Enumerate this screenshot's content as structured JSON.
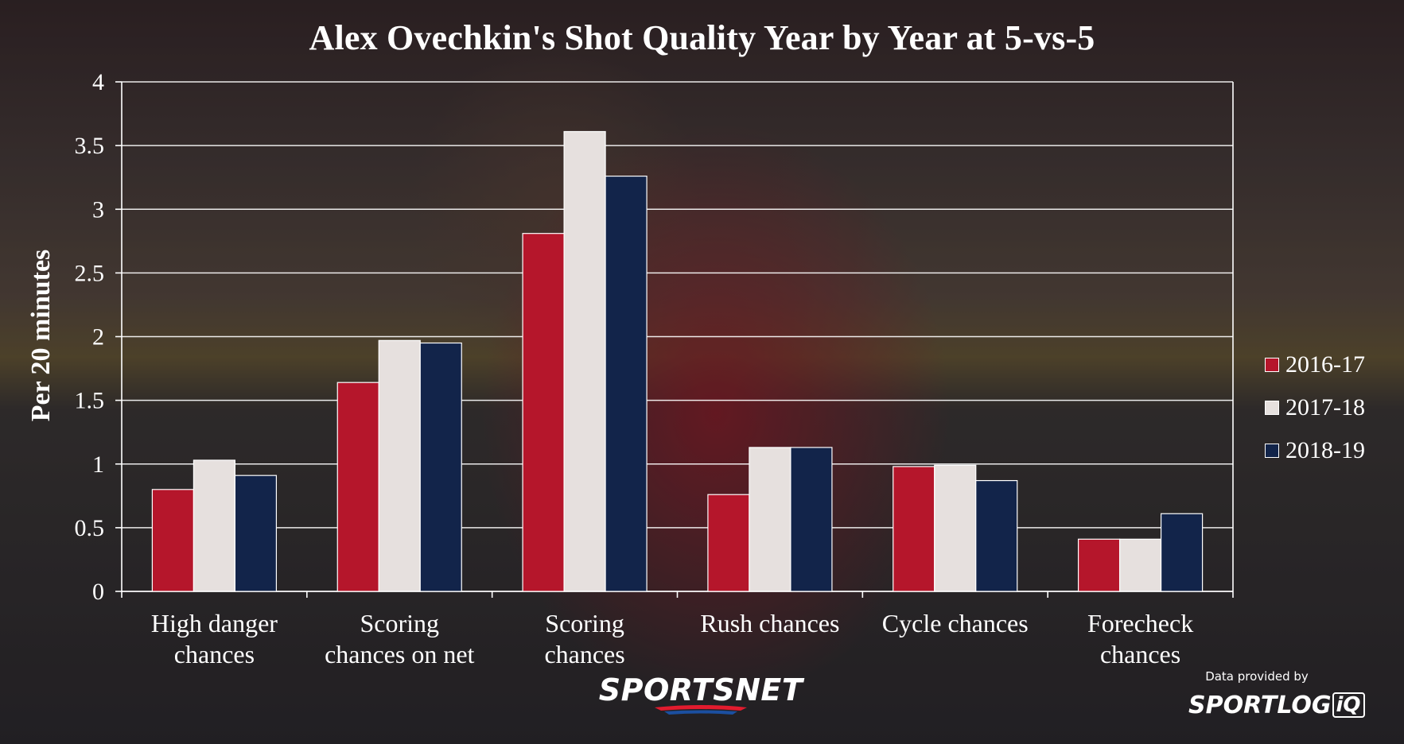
{
  "title": "Alex Ovechkin's Shot Quality Year by Year at 5-vs-5",
  "chart_data": {
    "type": "bar",
    "title": "Alex Ovechkin's Shot Quality Year by Year at 5-vs-5",
    "xlabel": "",
    "ylabel": "Per 20 minutes",
    "ylim": [
      0,
      4
    ],
    "yticks": [
      0,
      0.5,
      1,
      1.5,
      2,
      2.5,
      3,
      3.5,
      4
    ],
    "ytick_labels": [
      "0",
      "0.5",
      "1",
      "1.5",
      "2",
      "2.5",
      "3",
      "3.5",
      "4"
    ],
    "grid": true,
    "legend_position": "right",
    "categories": [
      [
        "High danger",
        "chances"
      ],
      [
        "Scoring",
        "chances on net"
      ],
      [
        "Scoring",
        "chances"
      ],
      [
        "Rush chances"
      ],
      [
        "Cycle chances"
      ],
      [
        "Forecheck",
        "chances"
      ]
    ],
    "series": [
      {
        "name": "2016-17",
        "color": "#b5162b",
        "values": [
          0.8,
          1.64,
          2.81,
          0.76,
          0.98,
          0.41
        ]
      },
      {
        "name": "2017-18",
        "color": "#e6e0de",
        "values": [
          1.03,
          1.97,
          3.61,
          1.13,
          0.99,
          0.41
        ]
      },
      {
        "name": "2018-19",
        "color": "#12244a",
        "values": [
          0.91,
          1.95,
          3.26,
          1.13,
          0.87,
          0.61
        ]
      }
    ]
  },
  "branding": {
    "sportsnet": "SPORTSNET",
    "credit": "Data provided by",
    "sportlogiq_main": "SPORTLOG",
    "sportlogiq_box": "iQ"
  }
}
